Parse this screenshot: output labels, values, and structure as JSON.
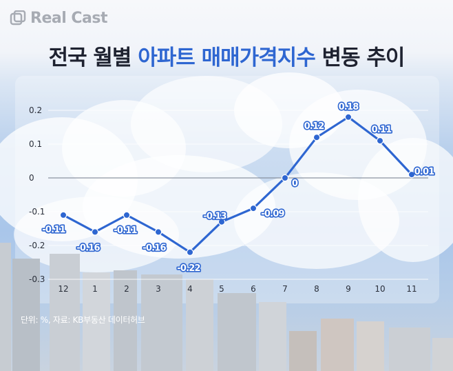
{
  "brand": {
    "name": "Real Cast"
  },
  "title": {
    "part1": "전국 월별 ",
    "highlight": "아파트 매매가격지수",
    "part2": " 변동 추이"
  },
  "colors": {
    "line": "#2e66d1",
    "highlight": "#2e66d1",
    "title": "#1e2230"
  },
  "chart_data": {
    "type": "line",
    "categories": [
      "12",
      "1",
      "2",
      "3",
      "4",
      "5",
      "6",
      "7",
      "8",
      "9",
      "10",
      "11"
    ],
    "values": [
      -0.11,
      -0.16,
      -0.11,
      -0.16,
      -0.22,
      -0.13,
      -0.09,
      0,
      0.12,
      0.18,
      0.11,
      0.01
    ],
    "labels": [
      "-0.11",
      "-0.16",
      "-0.11",
      "-0.16",
      "-0.22",
      "-0.13",
      "-0.09",
      "0",
      "0.12",
      "0.18",
      "0.11",
      "0.01"
    ],
    "yticks": [
      "0.2",
      "0.1",
      "0",
      "-0.1",
      "-0.2",
      "-0.3"
    ],
    "ytick_values": [
      0.2,
      0.1,
      0,
      -0.1,
      -0.2,
      -0.3
    ],
    "ylim": [
      -0.3,
      0.2
    ],
    "grid": true
  },
  "footnote": "단위: %, 자료: KB부동산 데이터허브"
}
